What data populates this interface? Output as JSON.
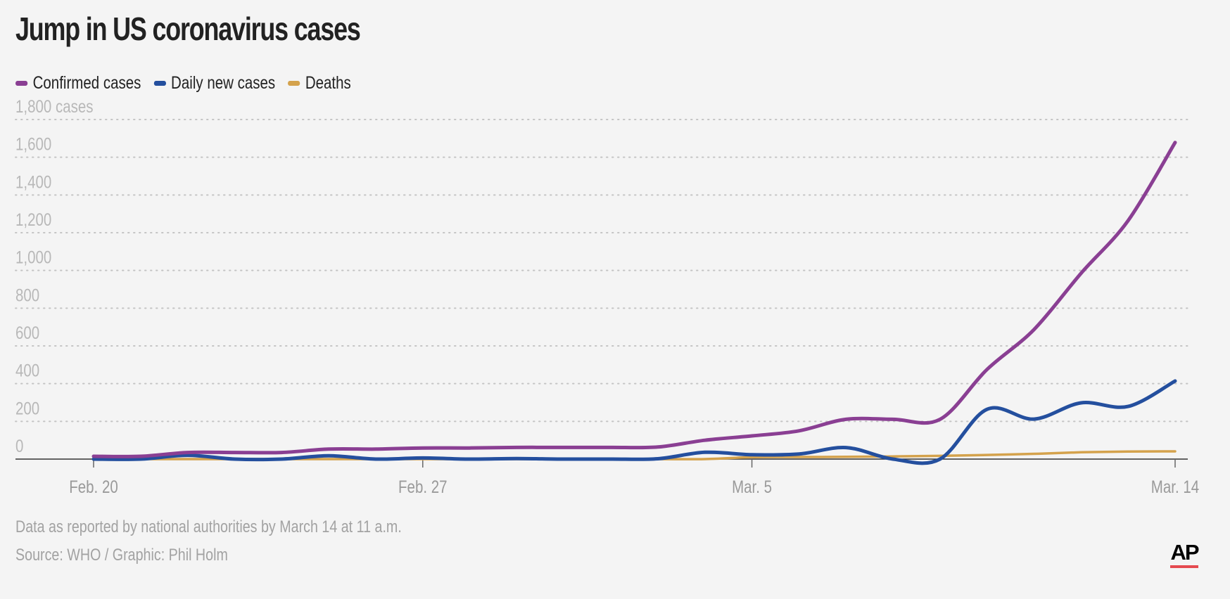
{
  "title": "Jump in US coronavirus cases",
  "legend": [
    {
      "label": "Confirmed cases",
      "color": "#8a3f93"
    },
    {
      "label": "Daily new cases",
      "color": "#244f9e"
    },
    {
      "label": "Deaths",
      "color": "#d4a24c"
    }
  ],
  "notes": {
    "line1": "Data as reported by national authorities by March 14 at 11 a.m.",
    "line2": "Source: WHO / Graphic: Phil Holm"
  },
  "logo": {
    "text": "AP",
    "accent": "#e54a50"
  },
  "chart_data": {
    "type": "line",
    "title": "Jump in US coronavirus cases",
    "xlabel": "",
    "ylabel": "cases",
    "ylim": [
      0,
      1800
    ],
    "y_ticks": [
      {
        "value": 1800,
        "label": "1,800 cases"
      },
      {
        "value": 1600,
        "label": "1,600"
      },
      {
        "value": 1400,
        "label": "1,400"
      },
      {
        "value": 1200,
        "label": "1,200"
      },
      {
        "value": 1000,
        "label": "1,000"
      },
      {
        "value": 800,
        "label": "800"
      },
      {
        "value": 600,
        "label": "600"
      },
      {
        "value": 400,
        "label": "400"
      },
      {
        "value": 200,
        "label": "200"
      },
      {
        "value": 0,
        "label": "0"
      }
    ],
    "x_ticks": [
      {
        "day": 0,
        "label": "Feb. 20"
      },
      {
        "day": 7,
        "label": "Feb. 27"
      },
      {
        "day": 14,
        "label": "Mar. 5"
      },
      {
        "day": 23,
        "label": "Mar. 14"
      }
    ],
    "x_range": [
      0,
      23
    ],
    "x_days": [
      0,
      1,
      2,
      3,
      4,
      5,
      6,
      7,
      8,
      9,
      10,
      11,
      12,
      13,
      14,
      15,
      16,
      17,
      18,
      19,
      20,
      21,
      22,
      23
    ],
    "grid": true,
    "series": [
      {
        "name": "Confirmed cases",
        "color": "#8a3f93",
        "values": [
          15,
          15,
          35,
          35,
          35,
          53,
          53,
          59,
          59,
          62,
          62,
          62,
          64,
          100,
          123,
          150,
          211,
          211,
          211,
          475,
          687,
          985,
          1264,
          1678
        ]
      },
      {
        "name": "Daily new cases",
        "color": "#244f9e",
        "values": [
          0,
          0,
          20,
          0,
          0,
          18,
          0,
          6,
          0,
          3,
          0,
          0,
          2,
          36,
          23,
          27,
          61,
          0,
          0,
          264,
          212,
          298,
          279,
          414
        ]
      },
      {
        "name": "Deaths",
        "color": "#d4a24c",
        "values": [
          0,
          0,
          0,
          0,
          0,
          0,
          0,
          0,
          0,
          0,
          0,
          0,
          0,
          0,
          10,
          11,
          12,
          14,
          17,
          22,
          28,
          36,
          40,
          41
        ]
      }
    ]
  }
}
